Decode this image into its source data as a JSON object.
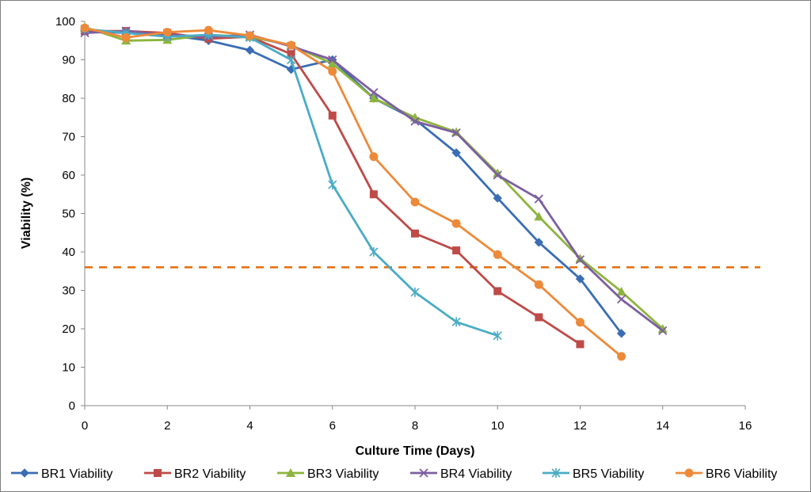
{
  "chart_data": {
    "type": "line",
    "title": "",
    "xlabel": "Culture Time (Days)",
    "ylabel": "Viability (%)",
    "xlim": [
      0,
      16
    ],
    "ylim": [
      0,
      100
    ],
    "xticks": [
      0,
      2,
      4,
      6,
      8,
      10,
      12,
      14,
      16
    ],
    "yticks": [
      0,
      10,
      20,
      30,
      40,
      50,
      60,
      70,
      80,
      90,
      100
    ],
    "grid": false,
    "legend_position": "bottom",
    "reference_line": {
      "y": 36,
      "color": "#e46c0a",
      "style": "dashed"
    },
    "series": [
      {
        "name": "BR1 Viability",
        "color": "#3a6db5",
        "marker": "diamond",
        "x": [
          0,
          1,
          2,
          3,
          4,
          5,
          6,
          7,
          8,
          9,
          10,
          11,
          12,
          13
        ],
        "y": [
          97.5,
          97,
          96.5,
          95,
          92.5,
          87.5,
          90,
          80,
          74.5,
          65.8,
          54,
          42.5,
          33,
          18.8
        ]
      },
      {
        "name": "BR2 Viability",
        "color": "#be4b48",
        "marker": "square",
        "x": [
          0,
          1,
          2,
          3,
          4,
          5,
          6,
          7,
          8,
          9,
          10,
          11,
          12
        ],
        "y": [
          97.5,
          97.5,
          97,
          95.5,
          96,
          91.5,
          75.5,
          55,
          44.8,
          40.4,
          29.8,
          23,
          16
        ]
      },
      {
        "name": "BR3 Viability",
        "color": "#8db43e",
        "marker": "triangle",
        "x": [
          0,
          1,
          2,
          3,
          4,
          5,
          6,
          7,
          8,
          9,
          10,
          11,
          12,
          13,
          14
        ],
        "y": [
          98.5,
          95,
          95.2,
          96.5,
          96,
          93.8,
          89,
          80,
          75,
          71.2,
          60.5,
          49.2,
          38.3,
          29.7,
          20
        ]
      },
      {
        "name": "BR4 Viability",
        "color": "#7c5fa0",
        "marker": "x",
        "x": [
          0,
          1,
          2,
          3,
          4,
          5,
          6,
          7,
          8,
          9,
          10,
          11,
          12,
          13,
          14
        ],
        "y": [
          97,
          97.5,
          96.5,
          96,
          96.5,
          93.5,
          90,
          81.5,
          74,
          71,
          60,
          53.8,
          38,
          27.7,
          19.5
        ]
      },
      {
        "name": "BR5 Viability",
        "color": "#4aacc5",
        "marker": "star",
        "x": [
          0,
          1,
          2,
          3,
          4,
          5,
          6,
          7,
          8,
          9,
          10
        ],
        "y": [
          98,
          97,
          96,
          96.5,
          95.8,
          90,
          57.5,
          40,
          29.5,
          21.8,
          18.2
        ]
      },
      {
        "name": "BR6 Viability",
        "color": "#ed8a3a",
        "marker": "circle",
        "x": [
          0,
          1,
          2,
          3,
          4,
          5,
          6,
          7,
          8,
          9,
          10,
          11,
          12,
          13
        ],
        "y": [
          98.3,
          95.8,
          97.2,
          97.7,
          96.3,
          93.8,
          87,
          64.8,
          53,
          47.4,
          39.3,
          31.5,
          21.7,
          12.8
        ]
      }
    ]
  }
}
